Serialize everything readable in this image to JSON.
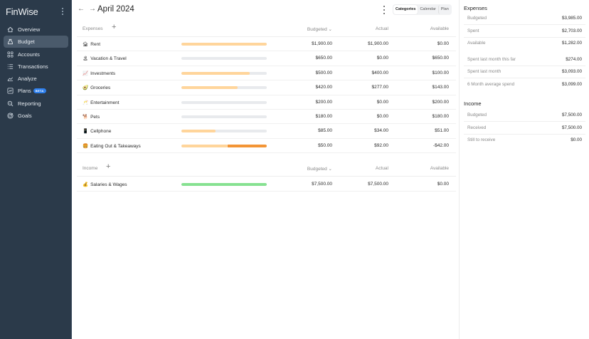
{
  "app": {
    "name": "FinWise"
  },
  "sidebar": {
    "items": [
      {
        "label": "Overview",
        "icon": "home-icon",
        "active": false
      },
      {
        "label": "Budget",
        "icon": "money-bag-icon",
        "active": true
      },
      {
        "label": "Accounts",
        "icon": "grid-icon",
        "active": false
      },
      {
        "label": "Transactions",
        "icon": "list-icon",
        "active": false
      },
      {
        "label": "Analyze",
        "icon": "chart-icon",
        "active": false
      },
      {
        "label": "Plans",
        "icon": "plan-icon",
        "active": false,
        "badge": "BETA"
      },
      {
        "label": "Reporting",
        "icon": "magnify-report-icon",
        "active": false
      },
      {
        "label": "Goals",
        "icon": "target-icon",
        "active": false
      }
    ]
  },
  "header": {
    "title": "April 2024",
    "prev_icon": "←",
    "next_icon": "→",
    "view_tabs": [
      {
        "label": "Categories",
        "active": true
      },
      {
        "label": "Calendar",
        "active": false
      },
      {
        "label": "Plan",
        "active": false
      }
    ]
  },
  "columns": {
    "budgeted": "Budgeted ⌄",
    "actual": "Actual",
    "available": "Available"
  },
  "expenses": {
    "label": "Expenses",
    "add": "+",
    "rows": [
      {
        "emoji": "🏚",
        "name": "Rent",
        "budgeted": "$1,900.00",
        "actual": "$1,900.00",
        "available": "$0.00",
        "fill": 100,
        "over": 0
      },
      {
        "emoji": "🏝",
        "name": "Vacation & Travel",
        "budgeted": "$650.00",
        "actual": "$0.00",
        "available": "$650.00",
        "fill": 0,
        "over": 0
      },
      {
        "emoji": "📈",
        "name": "Investments",
        "budgeted": "$500.00",
        "actual": "$400.00",
        "available": "$100.00",
        "fill": 80,
        "over": 0
      },
      {
        "emoji": "🥑",
        "name": "Groceries",
        "budgeted": "$420.00",
        "actual": "$277.00",
        "available": "$143.00",
        "fill": 66,
        "over": 0
      },
      {
        "emoji": "🥂",
        "name": "Entertainment",
        "budgeted": "$200.00",
        "actual": "$0.00",
        "available": "$200.00",
        "fill": 0,
        "over": 0
      },
      {
        "emoji": "🐕",
        "name": "Pets",
        "budgeted": "$180.00",
        "actual": "$0.00",
        "available": "$180.00",
        "fill": 0,
        "over": 0
      },
      {
        "emoji": "📱",
        "name": "Cellphone",
        "budgeted": "$85.00",
        "actual": "$34.00",
        "available": "$51.00",
        "fill": 40,
        "over": 0
      },
      {
        "emoji": "🍔",
        "name": "Eating Out & Takeaways",
        "budgeted": "$50.00",
        "actual": "$92.00",
        "available": "-$42.00",
        "fill": 54,
        "over": 46
      }
    ]
  },
  "income": {
    "label": "Income",
    "add": "+",
    "rows": [
      {
        "emoji": "💰",
        "name": "Salaries & Wages",
        "budgeted": "$7,500.00",
        "actual": "$7,500.00",
        "available": "$0.00",
        "fill": 100,
        "over": 0
      }
    ]
  },
  "summary": {
    "expenses": {
      "title": "Expenses",
      "rows": [
        {
          "label": "Budgeted",
          "value": "$3,985.00"
        },
        {
          "label": "Spent",
          "value": "$2,703.00"
        },
        {
          "label": "Available",
          "value": "$1,282.00"
        },
        {
          "label": "Spent last month this far",
          "value": "$274.00"
        },
        {
          "label": "Spent last month",
          "value": "$3,093.00"
        },
        {
          "label": "6 Month average spend",
          "value": "$3,099.00"
        }
      ]
    },
    "income": {
      "title": "Income",
      "rows": [
        {
          "label": "Budgeted",
          "value": "$7,500.00"
        },
        {
          "label": "Received",
          "value": "$7,500.00"
        },
        {
          "label": "Still to receive",
          "value": "$0.00"
        }
      ]
    }
  },
  "colors": {
    "sidebar_bg": "#2b3a4a",
    "sidebar_active": "#4a5a6b",
    "bar_track": "#e8eaed",
    "bar_fill": "#ffd59b",
    "bar_over": "#f39536",
    "bar_income": "#86e191",
    "beta_badge": "#2f80ed"
  }
}
